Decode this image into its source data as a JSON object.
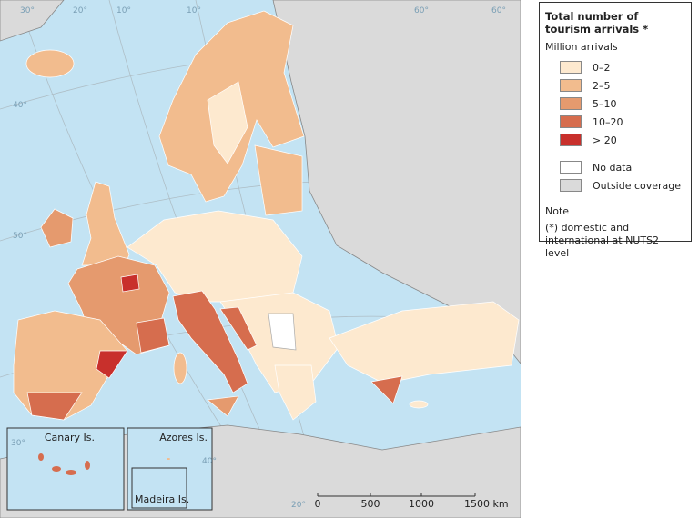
{
  "legend": {
    "title": "Total number of tourism arrivals *",
    "unit": "Million arrivals",
    "items": [
      {
        "label": "0–2",
        "color": "#fde9cf"
      },
      {
        "label": "2–5",
        "color": "#f2bc8e"
      },
      {
        "label": "5–10",
        "color": "#e59a6e"
      },
      {
        "label": "10–20",
        "color": "#d66d4e"
      },
      {
        "label": "> 20",
        "color": "#c8302c"
      }
    ],
    "extra": [
      {
        "label": "No data",
        "color": "#ffffff"
      },
      {
        "label": "Outside coverage",
        "color": "#dadada"
      }
    ],
    "note_title": "Note",
    "note": "(*) domestic and international at NUTS2 level"
  },
  "insets": [
    "Canary Is.",
    "Azores Is.",
    "Madeira Is."
  ],
  "scale_bar": [
    "0",
    "500",
    "1000",
    "1500 km"
  ],
  "graticule_labels": [
    "30°",
    "20°",
    "10°",
    "10°",
    "60°",
    "60°",
    "50°",
    "40°",
    "30°",
    "40°",
    "20°"
  ]
}
